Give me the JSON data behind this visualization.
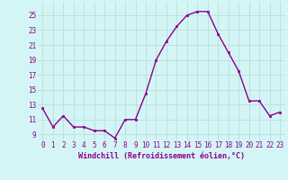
{
  "x": [
    0,
    1,
    2,
    3,
    4,
    5,
    6,
    7,
    8,
    9,
    10,
    11,
    12,
    13,
    14,
    15,
    16,
    17,
    18,
    19,
    20,
    21,
    22,
    23
  ],
  "y": [
    12.5,
    10.0,
    11.5,
    10.0,
    10.0,
    9.5,
    9.5,
    8.5,
    11.0,
    11.0,
    14.5,
    19.0,
    21.5,
    23.5,
    25.0,
    25.5,
    25.5,
    22.5,
    20.0,
    17.5,
    13.5,
    13.5,
    11.5,
    12.0
  ],
  "xlim": [
    -0.5,
    23.5
  ],
  "ylim": [
    8.2,
    26.8
  ],
  "yticks": [
    9,
    11,
    13,
    15,
    17,
    19,
    21,
    23,
    25
  ],
  "xticks": [
    0,
    1,
    2,
    3,
    4,
    5,
    6,
    7,
    8,
    9,
    10,
    11,
    12,
    13,
    14,
    15,
    16,
    17,
    18,
    19,
    20,
    21,
    22,
    23
  ],
  "xlabel": "Windchill (Refroidissement éolien,°C)",
  "line_color": "#8B008B",
  "marker": "s",
  "marker_size": 2.0,
  "bg_color": "#d4f5f5",
  "grid_color": "#b8dede",
  "axis_color": "#8B008B",
  "tick_fontsize": 5.5,
  "xlabel_fontsize": 6.0,
  "linewidth": 1.0
}
